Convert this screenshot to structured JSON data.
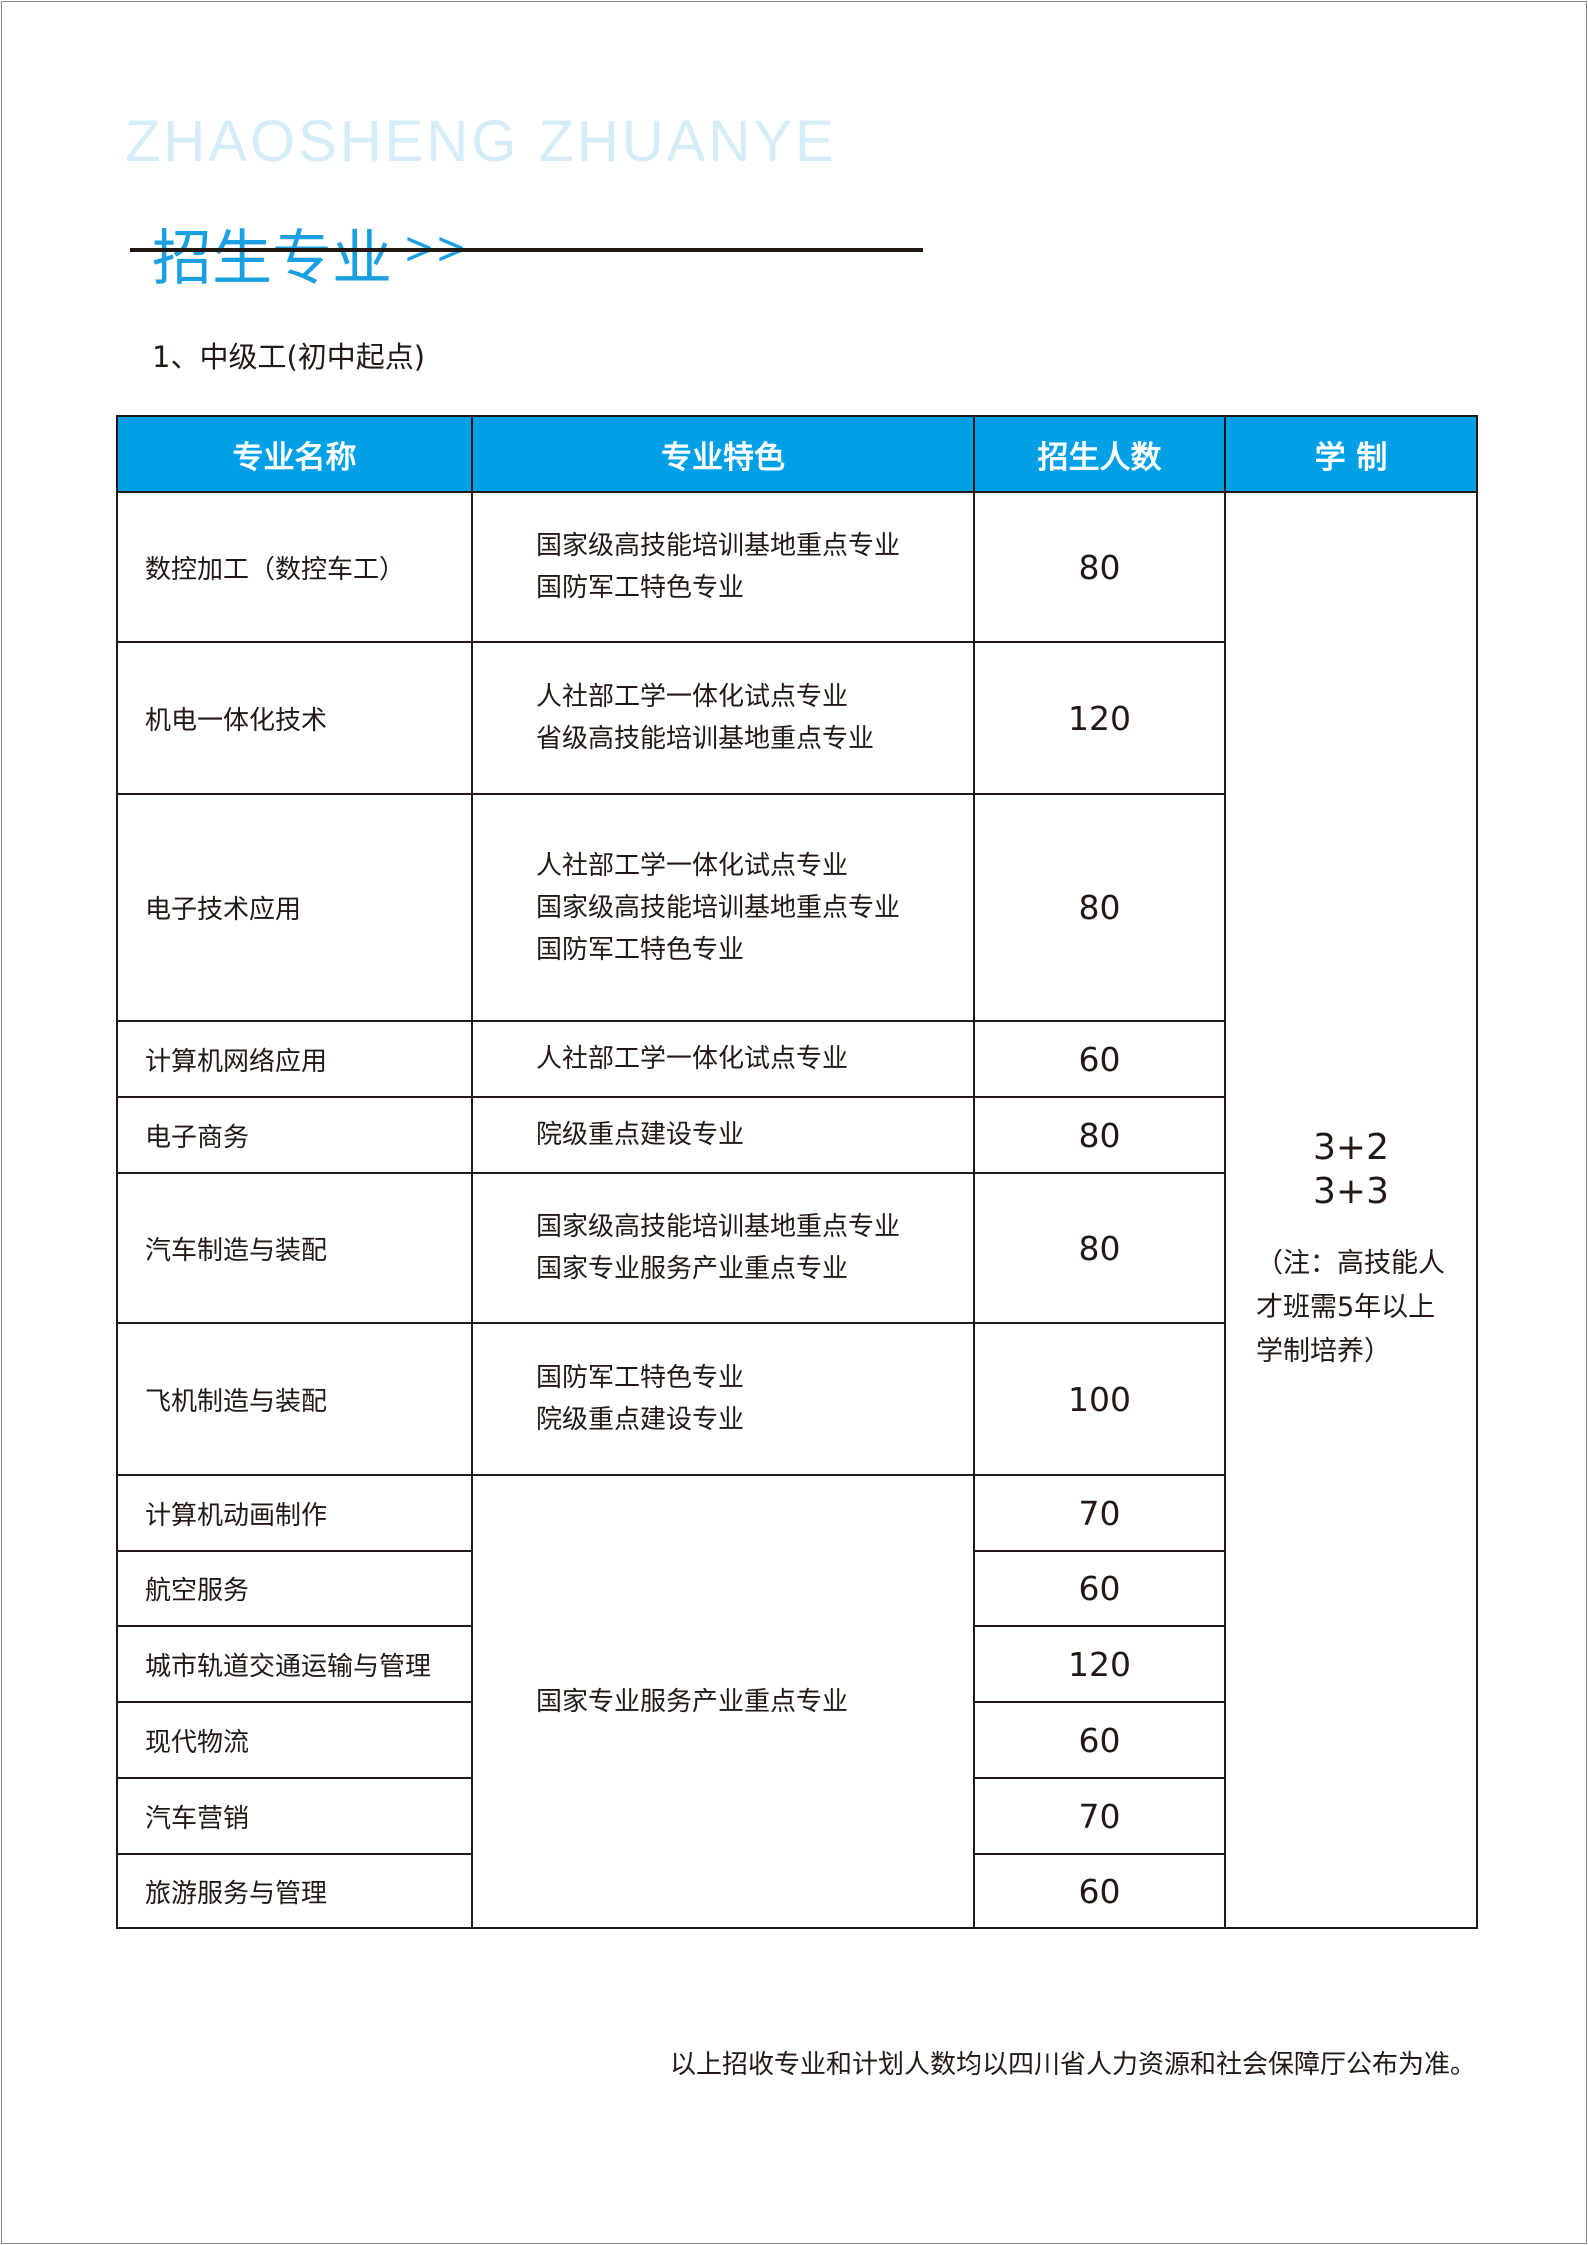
{
  "header": {
    "pinyin": "ZHAOSHENG ZHUANYE",
    "title": "招生专业",
    "arrows": ">>"
  },
  "section_title": "1、中级工(初中起点)",
  "table": {
    "columns": [
      "专业名称",
      "专业特色",
      "招生人数",
      "学 制"
    ],
    "rows": [
      {
        "name": "数控加工（数控车工）",
        "features": [
          "国家级高技能培训基地重点专业",
          "国防军工特色专业"
        ],
        "count": "80"
      },
      {
        "name": "机电一体化技术",
        "features": [
          "人社部工学一体化试点专业",
          "省级高技能培训基地重点专业"
        ],
        "count": "120"
      },
      {
        "name": "电子技术应用",
        "features": [
          "人社部工学一体化试点专业",
          "国家级高技能培训基地重点专业",
          "国防军工特色专业"
        ],
        "count": "80"
      },
      {
        "name": "计算机网络应用",
        "features": [
          "人社部工学一体化试点专业"
        ],
        "count": "60"
      },
      {
        "name": "电子商务",
        "features": [
          "院级重点建设专业"
        ],
        "count": "80"
      },
      {
        "name": "汽车制造与装配",
        "features": [
          "国家级高技能培训基地重点专业",
          "国家专业服务产业重点专业"
        ],
        "count": "80"
      },
      {
        "name": "飞机制造与装配",
        "features": [
          "国防军工特色专业",
          "院级重点建设专业"
        ],
        "count": "100"
      },
      {
        "name": "计算机动画制作",
        "count": "70"
      },
      {
        "name": "航空服务",
        "count": "60"
      },
      {
        "name": "城市轨道交通运输与管理",
        "count": "120"
      },
      {
        "name": "现代物流",
        "count": "60"
      },
      {
        "name": "汽车营销",
        "count": "70"
      },
      {
        "name": "旅游服务与管理",
        "count": "60"
      }
    ],
    "shared_feature": "国家专业服务产业重点专业",
    "duration": [
      "3+2",
      "3+3"
    ],
    "duration_note": "（注：高技能人才班需5年以上学制培养）"
  },
  "footer": "以上招收专业和计划人数均以四川省人力资源和社会保障厅公布为准。",
  "colors": {
    "accent": "#00a0e6",
    "title": "#1aa0e2",
    "pinyin": "#d5ecf9"
  }
}
